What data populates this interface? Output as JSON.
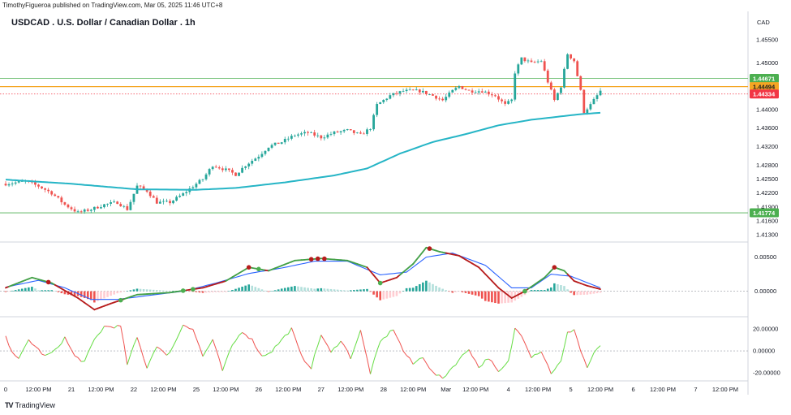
{
  "header": {
    "attribution": "TimothyFigueroa published on TradingView.com, Mar 05, 2025 11:46 UTC+8",
    "title": "USDCAD . U.S. Dollar / Canadian Dollar . 1h"
  },
  "footer": {
    "brand": "TradingView",
    "logo_glyph": "TV"
  },
  "colors": {
    "bull": "#26a69a",
    "bear": "#ef5350",
    "ma": "#26b5c6",
    "osc_fast_up": "#43a047",
    "osc_fast_down": "#b71c1c",
    "osc_slow": "#2962ff",
    "hist_up_strong": "#26a69a",
    "hist_up_weak": "#b2dfdb",
    "hist_down_strong": "#ef5350",
    "hist_down_weak": "#ffcdd2",
    "rsi_up": "#66dd44",
    "rsi_down": "#ef5350",
    "level_green": "#4caf50",
    "level_orange": "#f5a623",
    "last_price": "#f23645"
  },
  "chart_data": {
    "type": "candlestick",
    "title": "USDCAD . U.S. Dollar / Canadian Dollar . 1h",
    "currency_label": "CAD",
    "price_axis": {
      "range": [
        1.4125,
        1.4573
      ],
      "ticks": [
        "1.45500",
        "1.45000",
        "1.44000",
        "1.43600",
        "1.43200",
        "1.42800",
        "1.42500",
        "1.42200",
        "1.41900",
        "1.41600",
        "1.41300"
      ]
    },
    "time_axis": {
      "bars": 178,
      "labels": [
        {
          "bar": 0,
          "label": "0"
        },
        {
          "bar": 10,
          "label": "12:00 PM"
        },
        {
          "bar": 20,
          "label": "21"
        },
        {
          "bar": 29,
          "label": "12:00 PM"
        },
        {
          "bar": 39,
          "label": "22"
        },
        {
          "bar": 48,
          "label": "12:00 PM"
        },
        {
          "bar": 58,
          "label": "25"
        },
        {
          "bar": 67,
          "label": "12:00 PM"
        },
        {
          "bar": 77,
          "label": "26"
        },
        {
          "bar": 86,
          "label": "12:00 PM"
        },
        {
          "bar": 96,
          "label": "27"
        },
        {
          "bar": 105,
          "label": "12:00 PM"
        },
        {
          "bar": 115,
          "label": "28"
        },
        {
          "bar": 124,
          "label": "12:00 PM"
        },
        {
          "bar": 134,
          "label": "Mar"
        },
        {
          "bar": 143,
          "label": "12:00 PM"
        },
        {
          "bar": 153,
          "label": "4"
        },
        {
          "bar": 162,
          "label": "12:00 PM"
        },
        {
          "bar": 172,
          "label": "5"
        },
        {
          "bar": 181,
          "label": "12:00 PM"
        },
        {
          "bar": 191,
          "label": "6"
        },
        {
          "bar": 200,
          "label": "12:00 PM"
        },
        {
          "bar": 210,
          "label": "7"
        },
        {
          "bar": 219,
          "label": "12:00 PM"
        }
      ]
    },
    "price_anchors": [
      [
        0,
        1.424
      ],
      [
        6,
        1.4245
      ],
      [
        10,
        1.4235
      ],
      [
        14,
        1.422
      ],
      [
        18,
        1.4195
      ],
      [
        22,
        1.4178
      ],
      [
        26,
        1.4185
      ],
      [
        30,
        1.4195
      ],
      [
        34,
        1.42
      ],
      [
        37,
        1.4185
      ],
      [
        40,
        1.4235
      ],
      [
        43,
        1.4225
      ],
      [
        46,
        1.42
      ],
      [
        50,
        1.42
      ],
      [
        54,
        1.4218
      ],
      [
        58,
        1.424
      ],
      [
        60,
        1.425
      ],
      [
        63,
        1.428
      ],
      [
        67,
        1.427
      ],
      [
        70,
        1.426
      ],
      [
        73,
        1.428
      ],
      [
        77,
        1.43
      ],
      [
        80,
        1.432
      ],
      [
        84,
        1.433
      ],
      [
        88,
        1.4345
      ],
      [
        92,
        1.435
      ],
      [
        96,
        1.434
      ],
      [
        100,
        1.435
      ],
      [
        104,
        1.4355
      ],
      [
        108,
        1.4345
      ],
      [
        111,
        1.436
      ],
      [
        113,
        1.441
      ],
      [
        117,
        1.443
      ],
      [
        121,
        1.444
      ],
      [
        126,
        1.444
      ],
      [
        130,
        1.443
      ],
      [
        133,
        1.442
      ],
      [
        136,
        1.444
      ],
      [
        138,
        1.445
      ],
      [
        141,
        1.444
      ],
      [
        145,
        1.444
      ],
      [
        149,
        1.443
      ],
      [
        152,
        1.441
      ],
      [
        154,
        1.442
      ],
      [
        155,
        1.448
      ],
      [
        157,
        1.451
      ],
      [
        160,
        1.45
      ],
      [
        163,
        1.4505
      ],
      [
        165,
        1.446
      ],
      [
        167,
        1.442
      ],
      [
        169,
        1.445
      ],
      [
        171,
        1.452
      ],
      [
        173,
        1.4505
      ],
      [
        175,
        1.444
      ],
      [
        176,
        1.4395
      ],
      [
        178,
        1.441
      ],
      [
        180,
        1.443
      ],
      [
        181,
        1.444
      ]
    ],
    "moving_average": [
      [
        0,
        1.4249
      ],
      [
        20,
        1.424
      ],
      [
        40,
        1.4228
      ],
      [
        58,
        1.4227
      ],
      [
        70,
        1.4231
      ],
      [
        85,
        1.4243
      ],
      [
        100,
        1.4258
      ],
      [
        110,
        1.4273
      ],
      [
        120,
        1.4305
      ],
      [
        130,
        1.433
      ],
      [
        140,
        1.4347
      ],
      [
        150,
        1.4366
      ],
      [
        160,
        1.4378
      ],
      [
        170,
        1.4386
      ],
      [
        175,
        1.439
      ],
      [
        181,
        1.4393
      ]
    ],
    "levels": [
      {
        "price": 1.44671,
        "label": "1.44671",
        "kind": "green"
      },
      {
        "price": 1.44494,
        "label": "1.44494",
        "kind": "orange"
      },
      {
        "price": 1.44334,
        "label": "1.44334",
        "kind": "last"
      },
      {
        "price": 1.41774,
        "label": "1.41774",
        "kind": "green"
      }
    ],
    "oscillator": {
      "range": [
        -0.0035,
        0.0065
      ],
      "ticks": [
        "0.00500",
        "0.00000"
      ],
      "fast_anchors": [
        [
          0,
          0.0005
        ],
        [
          8,
          0.002
        ],
        [
          14,
          0.0012
        ],
        [
          22,
          -0.001
        ],
        [
          27,
          -0.0027
        ],
        [
          32,
          -0.0018
        ],
        [
          40,
          -0.0005
        ],
        [
          50,
          -0.0002
        ],
        [
          60,
          0.0005
        ],
        [
          67,
          0.0015
        ],
        [
          74,
          0.0035
        ],
        [
          80,
          0.003
        ],
        [
          88,
          0.0045
        ],
        [
          96,
          0.0048
        ],
        [
          104,
          0.0045
        ],
        [
          110,
          0.0035
        ],
        [
          114,
          0.0012
        ],
        [
          119,
          0.002
        ],
        [
          124,
          0.004
        ],
        [
          128,
          0.0064
        ],
        [
          132,
          0.0058
        ],
        [
          138,
          0.0052
        ],
        [
          144,
          0.0035
        ],
        [
          150,
          0.0005
        ],
        [
          154,
          -0.001
        ],
        [
          158,
          0.0
        ],
        [
          164,
          0.002
        ],
        [
          167,
          0.0035
        ],
        [
          170,
          0.003
        ],
        [
          173,
          0.0015
        ],
        [
          177,
          0.0008
        ],
        [
          181,
          0.0003
        ]
      ],
      "slow_anchors": [
        [
          0,
          0.0006
        ],
        [
          10,
          0.0016
        ],
        [
          18,
          0.0005
        ],
        [
          26,
          -0.0012
        ],
        [
          34,
          -0.0012
        ],
        [
          44,
          -0.0006
        ],
        [
          54,
          0.0
        ],
        [
          64,
          0.0012
        ],
        [
          74,
          0.0026
        ],
        [
          84,
          0.0034
        ],
        [
          94,
          0.0044
        ],
        [
          104,
          0.0044
        ],
        [
          114,
          0.0024
        ],
        [
          122,
          0.0028
        ],
        [
          128,
          0.005
        ],
        [
          136,
          0.0056
        ],
        [
          146,
          0.0038
        ],
        [
          154,
          0.0005
        ],
        [
          160,
          0.0005
        ],
        [
          166,
          0.0025
        ],
        [
          172,
          0.0022
        ],
        [
          181,
          0.0005
        ]
      ],
      "cross_points": [
        [
          13,
          "down"
        ],
        [
          35,
          "up"
        ],
        [
          54,
          "up"
        ],
        [
          57,
          "up"
        ],
        [
          74,
          "down"
        ],
        [
          77,
          "up"
        ],
        [
          93,
          "down"
        ],
        [
          95,
          "down"
        ],
        [
          97,
          "down"
        ],
        [
          114,
          "up"
        ],
        [
          129,
          "down"
        ],
        [
          158,
          "up"
        ],
        [
          167,
          "down"
        ]
      ]
    },
    "rsi": {
      "range": [
        -25,
        28
      ],
      "ticks": [
        "20.00000",
        "0.00000",
        "-20.00000"
      ],
      "anchors": [
        [
          0,
          12
        ],
        [
          2,
          0
        ],
        [
          4,
          -8
        ],
        [
          7,
          10
        ],
        [
          9,
          4
        ],
        [
          12,
          -5
        ],
        [
          15,
          0
        ],
        [
          18,
          12
        ],
        [
          21,
          -5
        ],
        [
          24,
          -10
        ],
        [
          27,
          10
        ],
        [
          30,
          22
        ],
        [
          33,
          22
        ],
        [
          35,
          22
        ],
        [
          37,
          -12
        ],
        [
          40,
          12
        ],
        [
          43,
          -15
        ],
        [
          46,
          5
        ],
        [
          49,
          -5
        ],
        [
          52,
          10
        ],
        [
          54,
          24
        ],
        [
          57,
          20
        ],
        [
          60,
          -5
        ],
        [
          63,
          10
        ],
        [
          66,
          -18
        ],
        [
          69,
          5
        ],
        [
          72,
          18
        ],
        [
          75,
          10
        ],
        [
          78,
          -5
        ],
        [
          81,
          0
        ],
        [
          84,
          10
        ],
        [
          87,
          20
        ],
        [
          90,
          -5
        ],
        [
          93,
          -15
        ],
        [
          96,
          15
        ],
        [
          99,
          -2
        ],
        [
          102,
          10
        ],
        [
          105,
          -6
        ],
        [
          108,
          18
        ],
        [
          111,
          -20
        ],
        [
          114,
          8
        ],
        [
          116,
          14
        ],
        [
          118,
          20
        ],
        [
          121,
          0
        ],
        [
          124,
          -12
        ],
        [
          127,
          -5
        ],
        [
          130,
          -20
        ],
        [
          133,
          -25
        ],
        [
          135,
          -18
        ],
        [
          138,
          -8
        ],
        [
          141,
          2
        ],
        [
          144,
          -15
        ],
        [
          147,
          -6
        ],
        [
          150,
          -20
        ],
        [
          153,
          -10
        ],
        [
          155,
          20
        ],
        [
          157,
          15
        ],
        [
          160,
          -5
        ],
        [
          163,
          0
        ],
        [
          166,
          -20
        ],
        [
          169,
          -10
        ],
        [
          171,
          16
        ],
        [
          173,
          20
        ],
        [
          175,
          0
        ],
        [
          177,
          -15
        ],
        [
          179,
          -3
        ],
        [
          181,
          5
        ]
      ]
    }
  }
}
